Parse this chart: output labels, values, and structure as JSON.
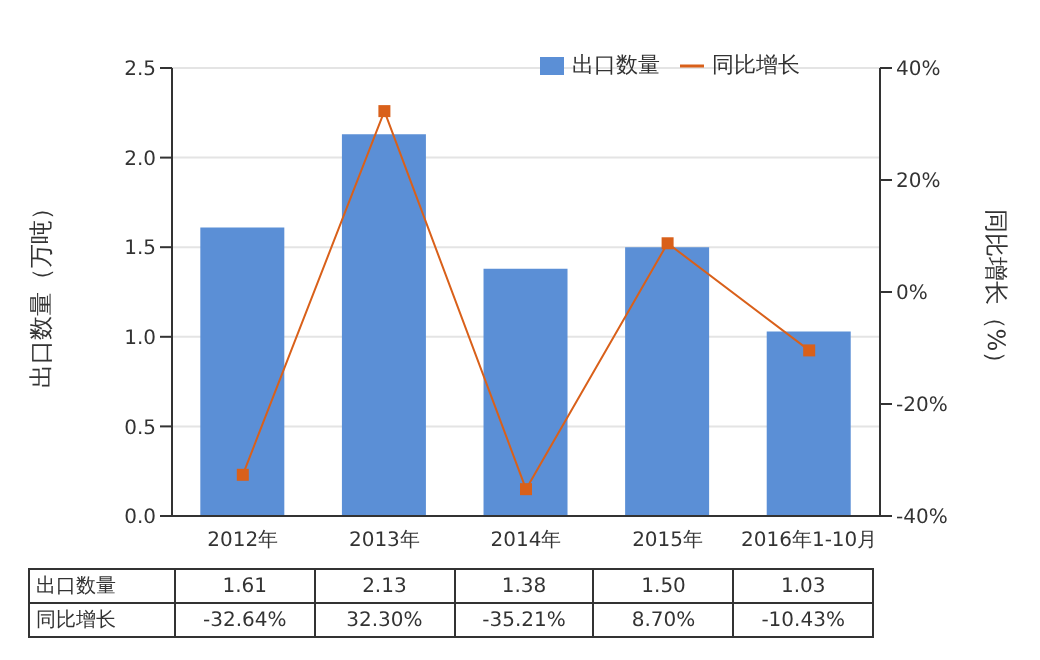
{
  "chart_data": {
    "type": "bar",
    "categories": [
      "2012年",
      "2013年",
      "2014年",
      "2015年",
      "2016年1-10月"
    ],
    "ylabel": "出口数量（万吨）",
    "y2label": "同比增长（%）",
    "series": [
      {
        "name": "出口数量",
        "color": "#5b8fd6",
        "values": [
          1.61,
          2.13,
          1.38,
          1.5,
          1.03
        ],
        "value_labels": [
          "1.61",
          "2.13",
          "1.38",
          "1.50",
          "1.03"
        ]
      },
      {
        "name": "同比增长",
        "type": "line",
        "axis": "y2",
        "color": "#d9601a",
        "marker": "square",
        "values": [
          -32.64,
          32.3,
          -35.21,
          8.7,
          -10.43
        ],
        "value_labels": [
          "-32.64%",
          "32.30%",
          "-35.21%",
          "8.70%",
          "-10.43%"
        ]
      }
    ],
    "ylim": [
      0,
      2.5
    ],
    "yticks": [
      {
        "value": 0,
        "label": "0.0"
      },
      0.5,
      {
        "value": 1,
        "label": "1.0"
      },
      1.5,
      {
        "value": 2,
        "label": "2.0"
      },
      2.5
    ],
    "y2lim": [
      -40,
      40
    ],
    "y2ticks": [
      {
        "value": -40,
        "label": "-40%"
      },
      {
        "value": -20,
        "label": "-20%"
      },
      {
        "value": 0,
        "label": "0%"
      },
      {
        "value": 20,
        "label": "20%"
      },
      {
        "value": 40,
        "label": "40%"
      }
    ],
    "grid": "y",
    "legend": "top right",
    "data_labels": true
  }
}
